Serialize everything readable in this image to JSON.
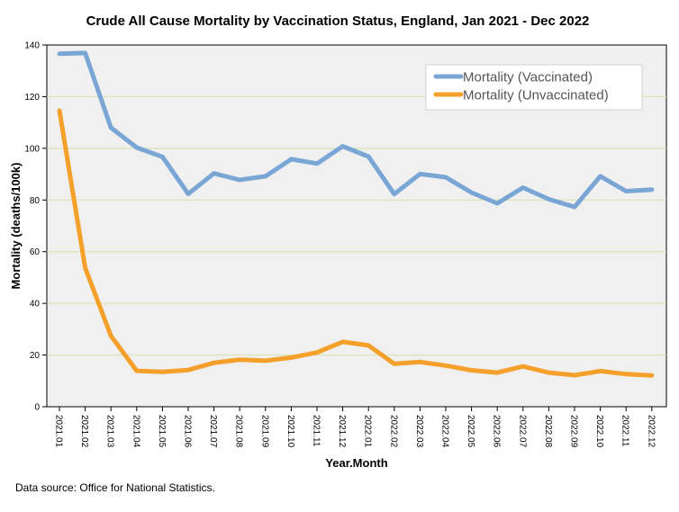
{
  "chart_data": {
    "type": "line",
    "title": "Crude All Cause Mortality by Vaccination Status, England, Jan 2021 - Dec 2022",
    "xlabel": "Year.Month",
    "ylabel": "Mortality (deaths/100k)",
    "ylim": [
      0,
      140
    ],
    "yticks": [
      "0",
      "20",
      "40",
      "60",
      "80",
      "100",
      "120",
      "140"
    ],
    "ytick_values": [
      0,
      20,
      40,
      60,
      80,
      100,
      120,
      140
    ],
    "grid": true,
    "legend_position": "top-right",
    "categories": [
      "2021.01",
      "2021.02",
      "2021.03",
      "2021.04",
      "2021.05",
      "2021.06",
      "2021.07",
      "2021.08",
      "2021.09",
      "2021.10",
      "2021.11",
      "2021.12",
      "2022.01",
      "2022.02",
      "2022.03",
      "2022.04",
      "2022.05",
      "2022.06",
      "2022.07",
      "2022.08",
      "2022.09",
      "2022.10",
      "2022.11",
      "2022.12"
    ],
    "series": [
      {
        "name": "Mortality (Vaccinated)",
        "color": "#7aa6d6",
        "values": [
          136.6,
          136.9,
          108.0,
          100.3,
          96.7,
          82.4,
          90.3,
          87.8,
          89.2,
          95.8,
          94.1,
          100.8,
          96.8,
          82.3,
          90.1,
          88.8,
          82.9,
          78.7,
          84.8,
          80.3,
          77.3,
          89.2,
          83.4,
          84.0
        ]
      },
      {
        "name": "Mortality (Unvaccinated)",
        "color": "#f5a02a",
        "values": [
          114.6,
          53.7,
          27.4,
          13.9,
          13.5,
          14.2,
          17.0,
          18.2,
          17.8,
          19.0,
          21.0,
          25.1,
          23.7,
          16.6,
          17.3,
          15.9,
          14.1,
          13.2,
          15.6,
          13.2,
          12.2,
          13.8,
          12.6,
          12.1
        ]
      }
    ]
  },
  "footnote": "Data source: Office for National Statistics."
}
